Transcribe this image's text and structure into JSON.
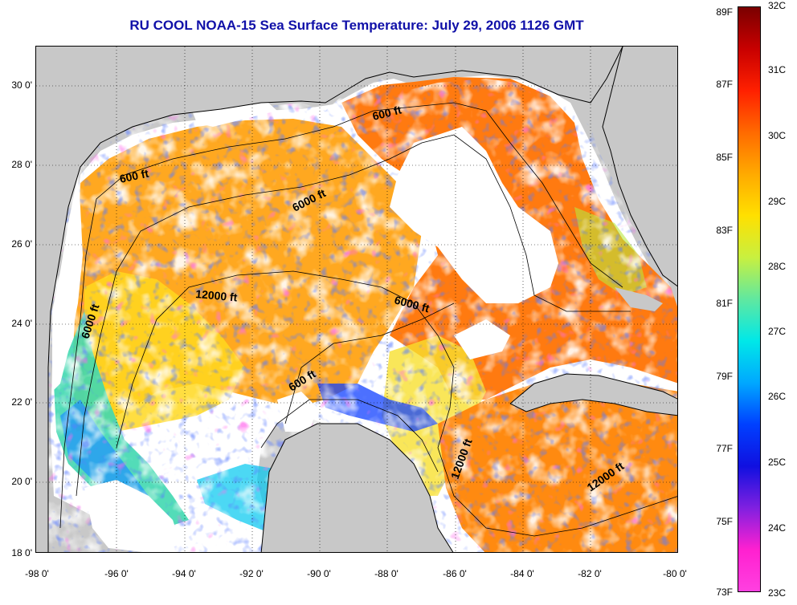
{
  "title": "RU COOL  NOAA-15  Sea Surface Temperature:  July 29, 2006 1126 GMT",
  "latitude_labels": [
    "30 0'",
    "28 0'",
    "26 0'",
    "24 0'",
    "22 0'",
    "20 0'",
    "18 0'"
  ],
  "longitude_labels": [
    "-98 0'",
    "-96 0'",
    "-94 0'",
    "-92 0'",
    "-90 0'",
    "-88 0'",
    "-86 0'",
    "-84 0'",
    "-82 0'",
    "-80 0'"
  ],
  "depth_contour_labels": [
    "600 ft",
    "600 ft",
    "6000 ft",
    "12000 ft",
    "6000 ft",
    "6000 ft",
    "600 ft",
    "12000 ft",
    "12000 ft"
  ],
  "colorbar": {
    "fahrenheit_labels": [
      "89F",
      "87F",
      "85F",
      "83F",
      "81F",
      "79F",
      "77F",
      "75F",
      "73F"
    ],
    "celsius_labels": [
      "32C",
      "31C",
      "30C",
      "29C",
      "28C",
      "27C",
      "26C",
      "25C",
      "24C",
      "23C"
    ],
    "gradient_colors": [
      "#7a0000",
      "#c80000",
      "#ff2000",
      "#ff6a00",
      "#ffaa00",
      "#ffe000",
      "#c8f040",
      "#60e8a0",
      "#00e8e8",
      "#00a8ff",
      "#0040ff",
      "#1010e0",
      "#8020e0",
      "#ff20d0",
      "#ff40e0"
    ]
  },
  "colors": {
    "land": "#c8c8c8",
    "no_data": "#ffffff",
    "title": "#1010a8"
  }
}
